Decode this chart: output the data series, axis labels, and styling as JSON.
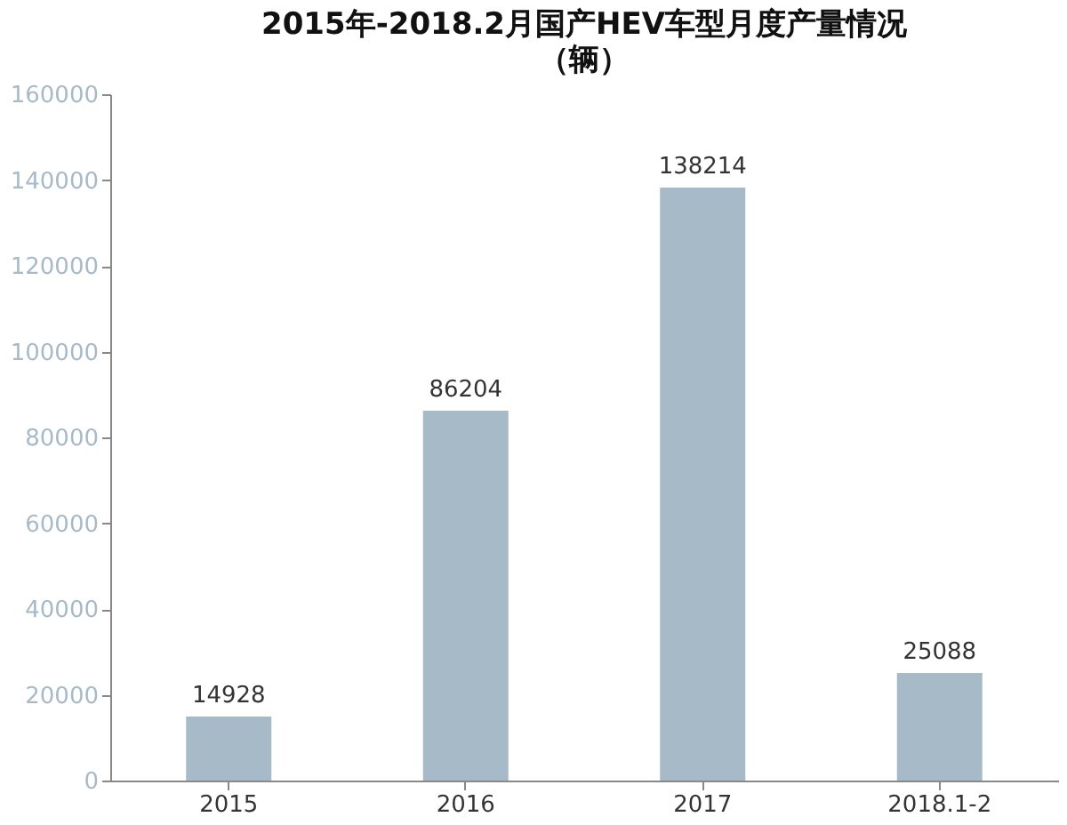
{
  "chart_data": {
    "type": "bar",
    "title": "2015年-2018.2月国产HEV车型月度产量情况",
    "subtitle": "（辆）",
    "categories": [
      "2015",
      "2016",
      "2017",
      "2018.1-2"
    ],
    "values": [
      14928,
      86204,
      138214,
      25088
    ],
    "color": "#a6bac8",
    "ylim": [
      0,
      160000
    ],
    "yticks": [
      0,
      20000,
      40000,
      60000,
      80000,
      100000,
      120000,
      140000,
      160000
    ],
    "data_labels": true,
    "grid": false
  }
}
